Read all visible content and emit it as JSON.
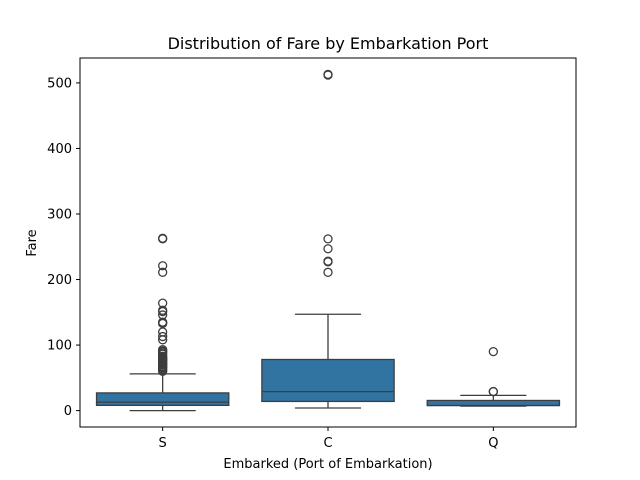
{
  "chart_data": {
    "type": "box",
    "title": "Distribution of Fare by Embarkation Port",
    "xlabel": "Embarked (Port of Embarkation)",
    "ylabel": "Fare",
    "ylim": [
      -25,
      538
    ],
    "yticks": [
      0,
      100,
      200,
      300,
      400,
      500
    ],
    "categories": [
      "S",
      "C",
      "Q"
    ],
    "box_color": "#3274a1",
    "line_color": "#3d3d3d",
    "boxes": [
      {
        "category": "S",
        "whisker_low": 0,
        "q1": 8,
        "median": 13,
        "q3": 27,
        "whisker_high": 56,
        "outliers": [
          60,
          61,
          63,
          65,
          66,
          67,
          69,
          70,
          71,
          72,
          73,
          75,
          76,
          77,
          78,
          79,
          80,
          82,
          83,
          86,
          88,
          90,
          91,
          93,
          108,
          113,
          120,
          133,
          134,
          135,
          146,
          151,
          153,
          164,
          211,
          221,
          262,
          263
        ]
      },
      {
        "category": "C",
        "whisker_low": 4,
        "q1": 14,
        "median": 29,
        "q3": 78,
        "whisker_high": 147,
        "outliers": [
          211,
          227,
          228,
          247,
          262,
          512,
          513
        ]
      },
      {
        "category": "Q",
        "whisker_low": 6.8,
        "q1": 7.75,
        "median": 7.75,
        "q3": 15.5,
        "whisker_high": 23.3,
        "outliers": [
          29,
          29.1,
          90
        ]
      }
    ]
  }
}
